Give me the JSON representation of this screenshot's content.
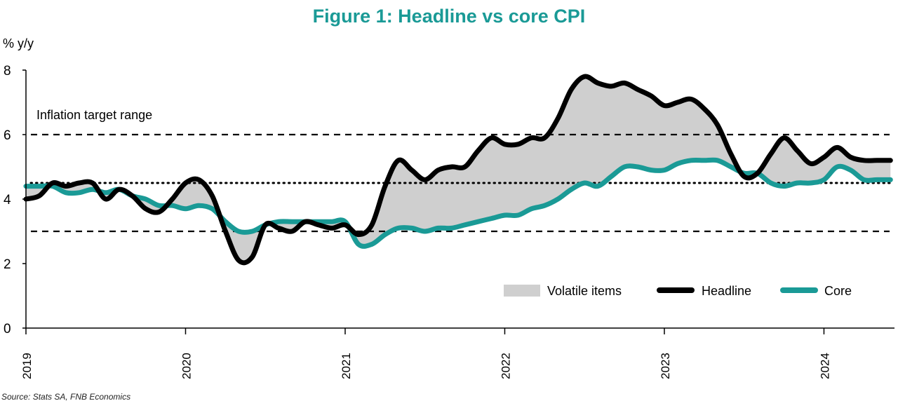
{
  "title": "Figure 1: Headline vs core CPI",
  "source": "Source: Stats SA, FNB Economics",
  "chart_data": {
    "type": "line",
    "title": "Figure 1: Headline vs core CPI",
    "ylabel": "% y/y",
    "xlabel": "",
    "ylim": [
      0,
      8
    ],
    "yticks": [
      "0",
      "2",
      "4",
      "6",
      "8"
    ],
    "xlim": [
      2019.0,
      2024.42
    ],
    "xticks": [
      "2019",
      "2020",
      "2021",
      "2022",
      "2023",
      "2024"
    ],
    "annotation": "Inflation target range",
    "target_range": [
      3,
      6
    ],
    "target_midpoint": 4.5,
    "legend_position": "bottom-right",
    "legend": [
      "Volatile items",
      "Headline",
      "Core"
    ],
    "colors": {
      "headline": "#000000",
      "core": "#1a9a96",
      "volatile": "#cfcfcf",
      "title": "#1a9a96"
    },
    "x": [
      2019.0,
      2019.083,
      2019.167,
      2019.25,
      2019.333,
      2019.417,
      2019.5,
      2019.583,
      2019.667,
      2019.75,
      2019.833,
      2019.917,
      2020.0,
      2020.083,
      2020.167,
      2020.25,
      2020.333,
      2020.417,
      2020.5,
      2020.583,
      2020.667,
      2020.75,
      2020.833,
      2020.917,
      2021.0,
      2021.083,
      2021.167,
      2021.25,
      2021.333,
      2021.417,
      2021.5,
      2021.583,
      2021.667,
      2021.75,
      2021.833,
      2021.917,
      2022.0,
      2022.083,
      2022.167,
      2022.25,
      2022.333,
      2022.417,
      2022.5,
      2022.583,
      2022.667,
      2022.75,
      2022.833,
      2022.917,
      2023.0,
      2023.083,
      2023.167,
      2023.25,
      2023.333,
      2023.417,
      2023.5,
      2023.583,
      2023.667,
      2023.75,
      2023.833,
      2023.917,
      2024.0,
      2024.083,
      2024.167,
      2024.25,
      2024.333,
      2024.417
    ],
    "series": [
      {
        "name": "Headline",
        "values": [
          4.0,
          4.1,
          4.5,
          4.4,
          4.5,
          4.5,
          4.0,
          4.3,
          4.1,
          3.7,
          3.6,
          4.0,
          4.5,
          4.6,
          4.1,
          3.0,
          2.1,
          2.2,
          3.2,
          3.1,
          3.0,
          3.3,
          3.2,
          3.1,
          3.2,
          2.9,
          3.2,
          4.4,
          5.2,
          4.9,
          4.6,
          4.9,
          5.0,
          5.0,
          5.5,
          5.9,
          5.7,
          5.7,
          5.9,
          5.9,
          6.5,
          7.4,
          7.8,
          7.6,
          7.5,
          7.6,
          7.4,
          7.2,
          6.9,
          7.0,
          7.1,
          6.8,
          6.3,
          5.4,
          4.7,
          4.8,
          5.4,
          5.9,
          5.5,
          5.1,
          5.3,
          5.6,
          5.3,
          5.2,
          5.2,
          5.2
        ]
      },
      {
        "name": "Core",
        "values": [
          4.4,
          4.4,
          4.4,
          4.2,
          4.2,
          4.3,
          4.2,
          4.3,
          4.1,
          4.0,
          3.8,
          3.8,
          3.7,
          3.8,
          3.7,
          3.3,
          3.0,
          3.0,
          3.2,
          3.3,
          3.3,
          3.3,
          3.3,
          3.3,
          3.3,
          2.6,
          2.6,
          2.9,
          3.1,
          3.1,
          3.0,
          3.1,
          3.1,
          3.2,
          3.3,
          3.4,
          3.5,
          3.5,
          3.7,
          3.8,
          4.0,
          4.3,
          4.5,
          4.4,
          4.7,
          5.0,
          5.0,
          4.9,
          4.9,
          5.1,
          5.2,
          5.2,
          5.2,
          5.0,
          4.8,
          4.8,
          4.5,
          4.4,
          4.5,
          4.5,
          4.6,
          5.0,
          4.9,
          4.6,
          4.6,
          4.6
        ]
      }
    ]
  }
}
